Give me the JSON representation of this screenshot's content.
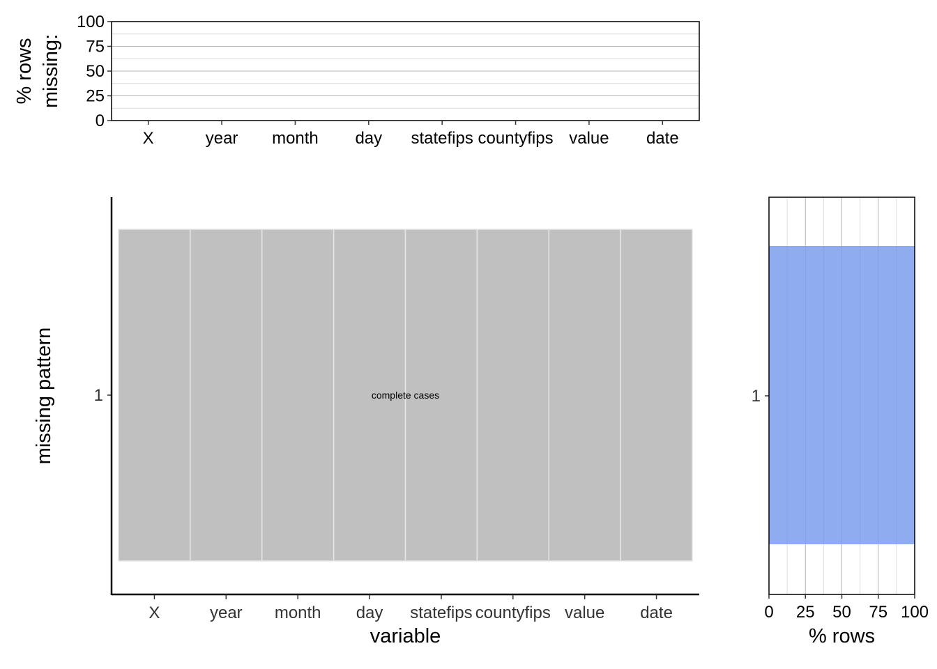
{
  "chart_data": [
    {
      "panel": "top",
      "type": "bar",
      "ylabel": "% rows\nmissing:",
      "ylim": [
        0,
        100
      ],
      "yticks": [
        0,
        25,
        50,
        75,
        100
      ],
      "categories": [
        "X",
        "year",
        "month",
        "day",
        "statefips",
        "countyfips",
        "value",
        "date"
      ],
      "values": [
        0,
        0,
        0,
        0,
        0,
        0,
        0,
        0
      ],
      "grid": true
    },
    {
      "panel": "main",
      "type": "heatmap",
      "xlabel": "variable",
      "ylabel": "missing pattern",
      "categories": [
        "X",
        "year",
        "month",
        "day",
        "statefips",
        "countyfips",
        "value",
        "date"
      ],
      "patterns": [
        {
          "label": "1",
          "missing": [
            false,
            false,
            false,
            false,
            false,
            false,
            false,
            false
          ],
          "annotation": "complete cases"
        }
      ],
      "colors": {
        "present": "#c0c0c0",
        "missing": "#9e76d6"
      }
    },
    {
      "panel": "right",
      "type": "bar",
      "orientation": "horizontal",
      "xlabel": "% rows",
      "xlim": [
        0,
        100
      ],
      "xticks": [
        0,
        25,
        50,
        75,
        100
      ],
      "categories": [
        "1"
      ],
      "values": [
        100
      ],
      "colors": {
        "bar": "#8aa8ef"
      },
      "grid": true
    }
  ]
}
